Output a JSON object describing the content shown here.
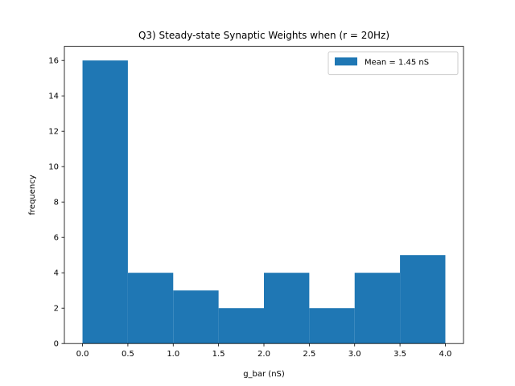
{
  "chart_data": {
    "type": "bar",
    "title": "Q3) Steady-state Synaptic Weights when (r = 20Hz)",
    "xlabel": "g_bar (nS)",
    "ylabel": "frequency",
    "bin_edges": [
      0.0,
      0.5,
      1.0,
      1.5,
      2.0,
      2.5,
      3.0,
      3.5,
      4.0
    ],
    "values": [
      16,
      4,
      3,
      2,
      4,
      2,
      4,
      5
    ],
    "xlim": [
      -0.2,
      4.2
    ],
    "ylim": [
      0,
      16.8
    ],
    "xticks": [
      0.0,
      0.5,
      1.0,
      1.5,
      2.0,
      2.5,
      3.0,
      3.5,
      4.0
    ],
    "xtick_labels": [
      "0.0",
      "0.5",
      "1.0",
      "1.5",
      "2.0",
      "2.5",
      "3.0",
      "3.5",
      "4.0"
    ],
    "yticks": [
      0,
      2,
      4,
      6,
      8,
      10,
      12,
      14,
      16
    ],
    "ytick_labels": [
      "0",
      "2",
      "4",
      "6",
      "8",
      "10",
      "12",
      "14",
      "16"
    ],
    "grid": false,
    "legend": {
      "position": "top-right",
      "entries": [
        {
          "label": "Mean = 1.45 nS",
          "color": "#1f77b4"
        }
      ]
    },
    "bar_color": "#1f77b4"
  }
}
